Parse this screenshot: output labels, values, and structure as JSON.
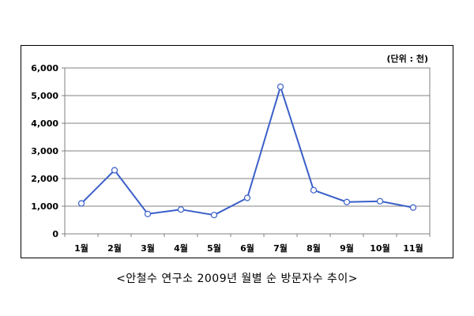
{
  "chart_data": {
    "type": "line",
    "unit_label": "(단위 : 천)",
    "categories": [
      "1월",
      "2월",
      "3월",
      "4월",
      "5월",
      "6월",
      "7월",
      "8월",
      "9월",
      "10월",
      "11월"
    ],
    "series": [
      {
        "values": [
          1100,
          2300,
          720,
          880,
          680,
          1300,
          5320,
          1580,
          1150,
          1180,
          950
        ]
      }
    ],
    "yticks": [
      "0",
      "1,000",
      "2,000",
      "3,000",
      "4,000",
      "5,000",
      "6,000"
    ],
    "ylim": [
      0,
      6000
    ],
    "grid": true,
    "line_color": "#3a5fc8",
    "marker_fill": "#ffffff"
  },
  "caption": "<안철수 연구소 2009년 월별 순 방문자수 추이>"
}
